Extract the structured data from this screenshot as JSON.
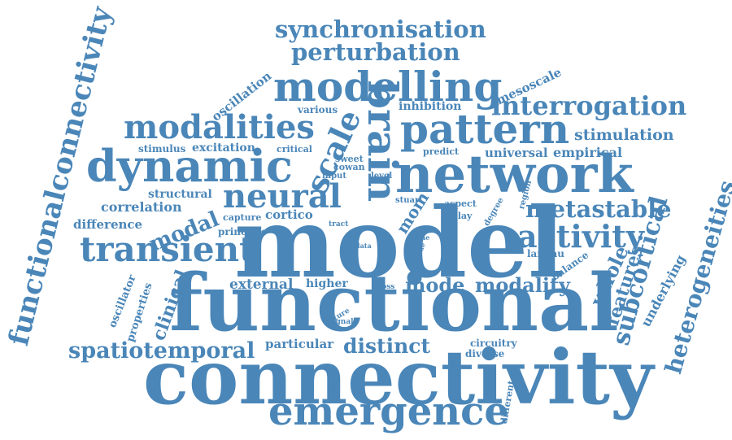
{
  "words": {
    "model": "model",
    "functional": "functional",
    "connectivity": "connectivity",
    "network": "network",
    "dynamic": "dynamic",
    "modelling": "modelling",
    "pattern": "pattern",
    "neural": "neural",
    "brain": "brain",
    "emergence": "emergence",
    "transient": "transient",
    "modalities": "modalities",
    "scale": "scale",
    "activity": "activity",
    "functionalconnectivity": "functionalconnectivity",
    "synchronisation": "synchronisation",
    "perturbation": "perturbation",
    "interrogation": "interrogation",
    "spatiotemporal": "spatiotemporal",
    "metastable": "metastable",
    "subcortical": "subcortical",
    "heterogeneities": "heterogeneities",
    "distinct": "distinct",
    "mode": "mode",
    "modality": "modality",
    "modal": "modal",
    "whole": "whole",
    "features": "features",
    "clinical": "clinical",
    "external": "external",
    "stimulation": "stimulation",
    "empirical": "empirical",
    "universal": "universal",
    "oscillation": "oscillation",
    "mesoscale": "mesoscale",
    "inhibition": "inhibition",
    "various": "various",
    "excitation": "excitation",
    "stimulus": "stimulus",
    "critical": "critical",
    "sweet": "sweet",
    "cowan": "cowan",
    "input": "input",
    "level": "level",
    "predict": "predict",
    "structural": "structural",
    "correlation": "correlation",
    "difference": "difference",
    "principle": "principle",
    "capture": "capture",
    "cortico": "cortico",
    "tract": "tract",
    "mom": "mom",
    "stuart": "stuart",
    "aspect": "aspect",
    "delay": "delay",
    "degree": "degree",
    "region": "region",
    "time": "time",
    "node": "node",
    "data": "data",
    "wilson": "wilson",
    "landau": "landau",
    "balance": "balance",
    "underlying": "underlying",
    "higher": "higher",
    "cross": "cross",
    "future": "future",
    "signal": "signal",
    "particular": "particular",
    "circuitry": "circuitry",
    "diverse": "diverse",
    "different": "different",
    "oscillator": "oscillator",
    "properties": "properties"
  },
  "colors": {
    "word": "#4a86b8",
    "background": "#ffffff"
  }
}
